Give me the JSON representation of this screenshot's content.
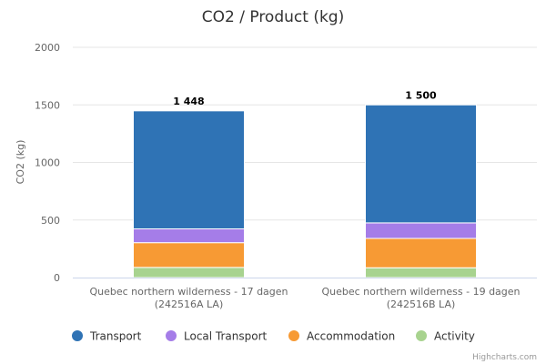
{
  "chart_data": {
    "type": "bar",
    "stacked": true,
    "title": "CO2 / Product (kg)",
    "ylabel": "CO2 (kg)",
    "xlabel": "",
    "ylim": [
      0,
      2000
    ],
    "yticks": [
      0,
      500,
      1000,
      1500,
      2000
    ],
    "ytick_labels": [
      "0",
      "500",
      "1000",
      "1500",
      "2000"
    ],
    "grid": true,
    "legend_position": "bottom",
    "categories": [
      [
        "Quebec northern wilderness - 17 dagen",
        "(242516A LA)"
      ],
      [
        "Quebec northern wilderness - 19 dagen",
        "(242516B LA)"
      ]
    ],
    "totals": [
      1448,
      1500
    ],
    "total_labels": [
      "1 448",
      "1 500"
    ],
    "series": [
      {
        "name": "Transport",
        "color": "#2f73b5",
        "values": [
          1025,
          1025
        ]
      },
      {
        "name": "Local Transport",
        "color": "#a57de8",
        "values": [
          120,
          135
        ]
      },
      {
        "name": "Accommodation",
        "color": "#f79a34",
        "values": [
          215,
          255
        ]
      },
      {
        "name": "Activity",
        "color": "#a8d38f",
        "values": [
          88,
          85
        ]
      }
    ],
    "legend_order": [
      0,
      1,
      2,
      3
    ],
    "credits": "Highcharts.com"
  }
}
